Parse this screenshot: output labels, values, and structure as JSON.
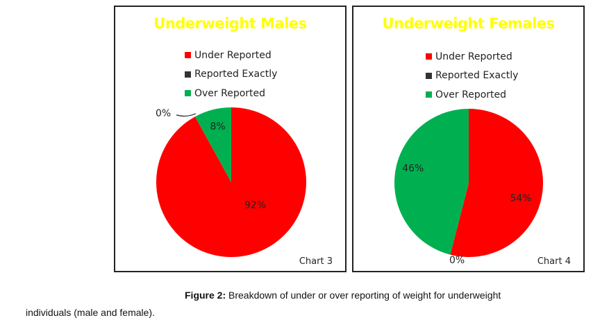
{
  "chart_data": [
    {
      "type": "pie",
      "title": "Underweight Males",
      "chart_label": "Chart 3",
      "legend": [
        "Under Reported",
        "Reported Exactly",
        "Over Reported"
      ],
      "legend_placement": "top-center",
      "slices": [
        {
          "name": "Under Reported",
          "value": 92,
          "label": "92%",
          "color": "#ff0000"
        },
        {
          "name": "Reported Exactly",
          "value": 0,
          "label": "0%",
          "color": "#333333"
        },
        {
          "name": "Over Reported",
          "value": 8,
          "label": "8%",
          "color": "#00b050"
        }
      ]
    },
    {
      "type": "pie",
      "title": "Underweight Females",
      "chart_label": "Chart 4",
      "legend": [
        "Under Reported",
        "Reported Exactly",
        "Over Reported"
      ],
      "legend_placement": "top-center",
      "slices": [
        {
          "name": "Under Reported",
          "value": 54,
          "label": "54%",
          "color": "#ff0000"
        },
        {
          "name": "Reported Exactly",
          "value": 0,
          "label": "0%",
          "color": "#333333"
        },
        {
          "name": "Over Reported",
          "value": 46,
          "label": "46%",
          "color": "#00b050"
        }
      ]
    }
  ],
  "colors": {
    "title": "#ffff00",
    "under_reported": "#ff0000",
    "reported_exactly": "#333333",
    "over_reported": "#00b050"
  },
  "caption": {
    "prefix": "Figure 2:",
    "line1": " Breakdown of under or over reporting of weight for underweight",
    "line2": "individuals (male and female)."
  }
}
